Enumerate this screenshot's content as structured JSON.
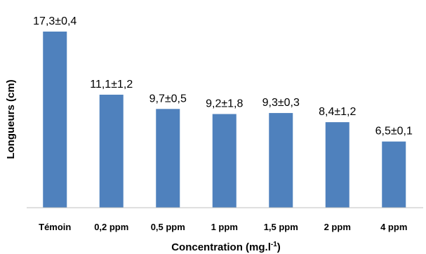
{
  "chart_data": {
    "type": "bar",
    "categories": [
      "Témoin",
      "0,2 ppm",
      "0,5 ppm",
      "1 ppm",
      "1,5 ppm",
      "2 ppm",
      "4 ppm"
    ],
    "values": [
      17.3,
      11.1,
      9.7,
      9.2,
      9.3,
      8.4,
      6.5
    ],
    "errors": [
      0.4,
      1.2,
      0.5,
      1.8,
      0.3,
      1.2,
      0.1
    ],
    "data_labels": [
      "17,3±0,4",
      "11,1±1,2",
      "9,7±0,5",
      "9,2±1,8",
      "9,3±0,3",
      "8,4±1,2",
      "6,5±0,1"
    ],
    "title": "",
    "xlabel_main": "Concentration (mg.l",
    "xlabel_sup": "-1",
    "xlabel_end": ")",
    "ylabel": "Longueurs (cm)",
    "ylim": [
      0,
      17.3
    ],
    "grid": false,
    "bar_color": "#4f81bd",
    "axis_color": "#bfbfbf"
  }
}
